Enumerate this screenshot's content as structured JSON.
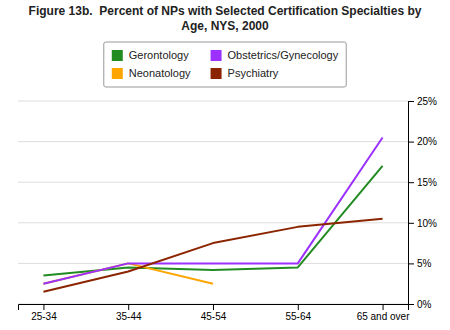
{
  "chart_data": {
    "type": "line",
    "title": [
      "Figure 13b.  Percent of NPs with Selected Certification Specialties by",
      "Age, NYS, 2000"
    ],
    "categories": [
      "25-34",
      "35-44",
      "45-54",
      "55-64",
      "65 and over"
    ],
    "series": [
      {
        "name": "Gerontology",
        "color": "#228B22",
        "values": [
          3.5,
          4.5,
          4.2,
          4.5,
          17.0
        ]
      },
      {
        "name": "Neonatology",
        "color": "#FFA500",
        "values": [
          2.5,
          5.0,
          2.5,
          null,
          null
        ]
      },
      {
        "name": "Obstetrics/Gynecology",
        "color": "#9B30FF",
        "values": [
          2.5,
          5.0,
          5.0,
          5.0,
          20.5
        ]
      },
      {
        "name": "Psychiatry",
        "color": "#8B2500",
        "values": [
          1.5,
          4.0,
          7.5,
          9.5,
          10.5
        ]
      }
    ],
    "ylim": [
      0,
      25
    ],
    "yticks": [
      {
        "value": 0,
        "label": "0%"
      },
      {
        "value": 5,
        "label": "5%"
      },
      {
        "value": 10,
        "label": "10%"
      },
      {
        "value": 15,
        "label": "15%"
      },
      {
        "value": 20,
        "label": "20%"
      },
      {
        "value": 25,
        "label": "25%"
      }
    ],
    "grid": true,
    "legend": "top"
  }
}
